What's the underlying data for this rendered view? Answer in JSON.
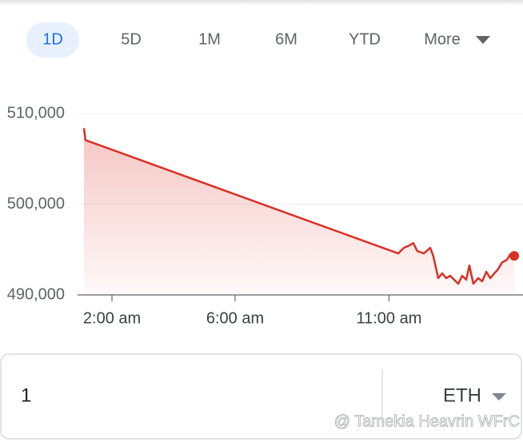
{
  "tabs": [
    "1D",
    "5D",
    "1M",
    "6M",
    "YTD",
    "More"
  ],
  "chart_data": {
    "type": "line",
    "color": "#d93025",
    "x": [
      1.09,
      1.14,
      11.3,
      11.48,
      11.66,
      11.79,
      11.92,
      12.13,
      12.34,
      12.44,
      12.6,
      12.73,
      12.86,
      12.99,
      13.12,
      13.25,
      13.38,
      13.51,
      13.61,
      13.74,
      13.9,
      14.03,
      14.16,
      14.29,
      14.42,
      14.52,
      14.68,
      14.83,
      14.94,
      15.07
    ],
    "values": [
      508414,
      507093,
      494582,
      495198,
      495463,
      495727,
      494846,
      494582,
      495198,
      494317,
      491850,
      492379,
      491850,
      492115,
      491674,
      491233,
      492115,
      491674,
      493260,
      491233,
      491850,
      491498,
      492555,
      491850,
      492379,
      492731,
      493612,
      493877,
      494493,
      494317
    ],
    "xlim": [
      1.09,
      15.12
    ],
    "xticks": [
      {
        "value": 2,
        "label": "2:00 am"
      },
      {
        "value": 6,
        "label": "6:00 am"
      },
      {
        "value": 11,
        "label": "11:00 am"
      }
    ],
    "ylim": [
      490000,
      511000
    ],
    "yticks": [
      {
        "value": 490000,
        "label": "490,000"
      },
      {
        "value": 500000,
        "label": "500,000"
      },
      {
        "value": 510000,
        "label": "510,000"
      }
    ],
    "grid": true
  },
  "converter": {
    "amount": "1",
    "currency": "ETH"
  },
  "watermark": "@ Tamekia Heavrin WFrC"
}
